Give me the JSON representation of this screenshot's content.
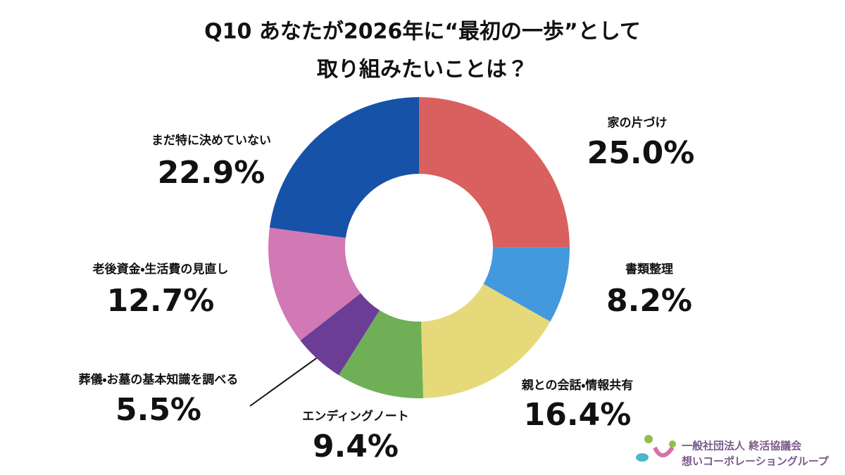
{
  "chart_data": {
    "type": "donut",
    "title": [
      "Q10 あなたが2026年に“最初の一歩”として",
      "取り組みたいことは？"
    ],
    "categories": [
      "家の片づけ",
      "書類整理",
      "親との会話・情報共有",
      "エンディングノート",
      "葬儀・お墓の基本知識を調べる",
      "老後資金・生活費の見直し",
      "まだ特に決めていない"
    ],
    "values": [
      25.0,
      8.2,
      16.4,
      9.4,
      5.5,
      12.7,
      22.9
    ],
    "value_labels": [
      "25.0%",
      "8.2%",
      "16.4%",
      "9.4%",
      "5.5%",
      "12.7%",
      "22.9%"
    ],
    "colors": [
      "#d9605f",
      "#4399dd",
      "#e6d97a",
      "#6fb057",
      "#6b3d96",
      "#d178b5",
      "#1552a8"
    ]
  },
  "logo": {
    "line1": "一般社団法人 終活協議会",
    "line2": "想いコーポレーショングループ"
  }
}
